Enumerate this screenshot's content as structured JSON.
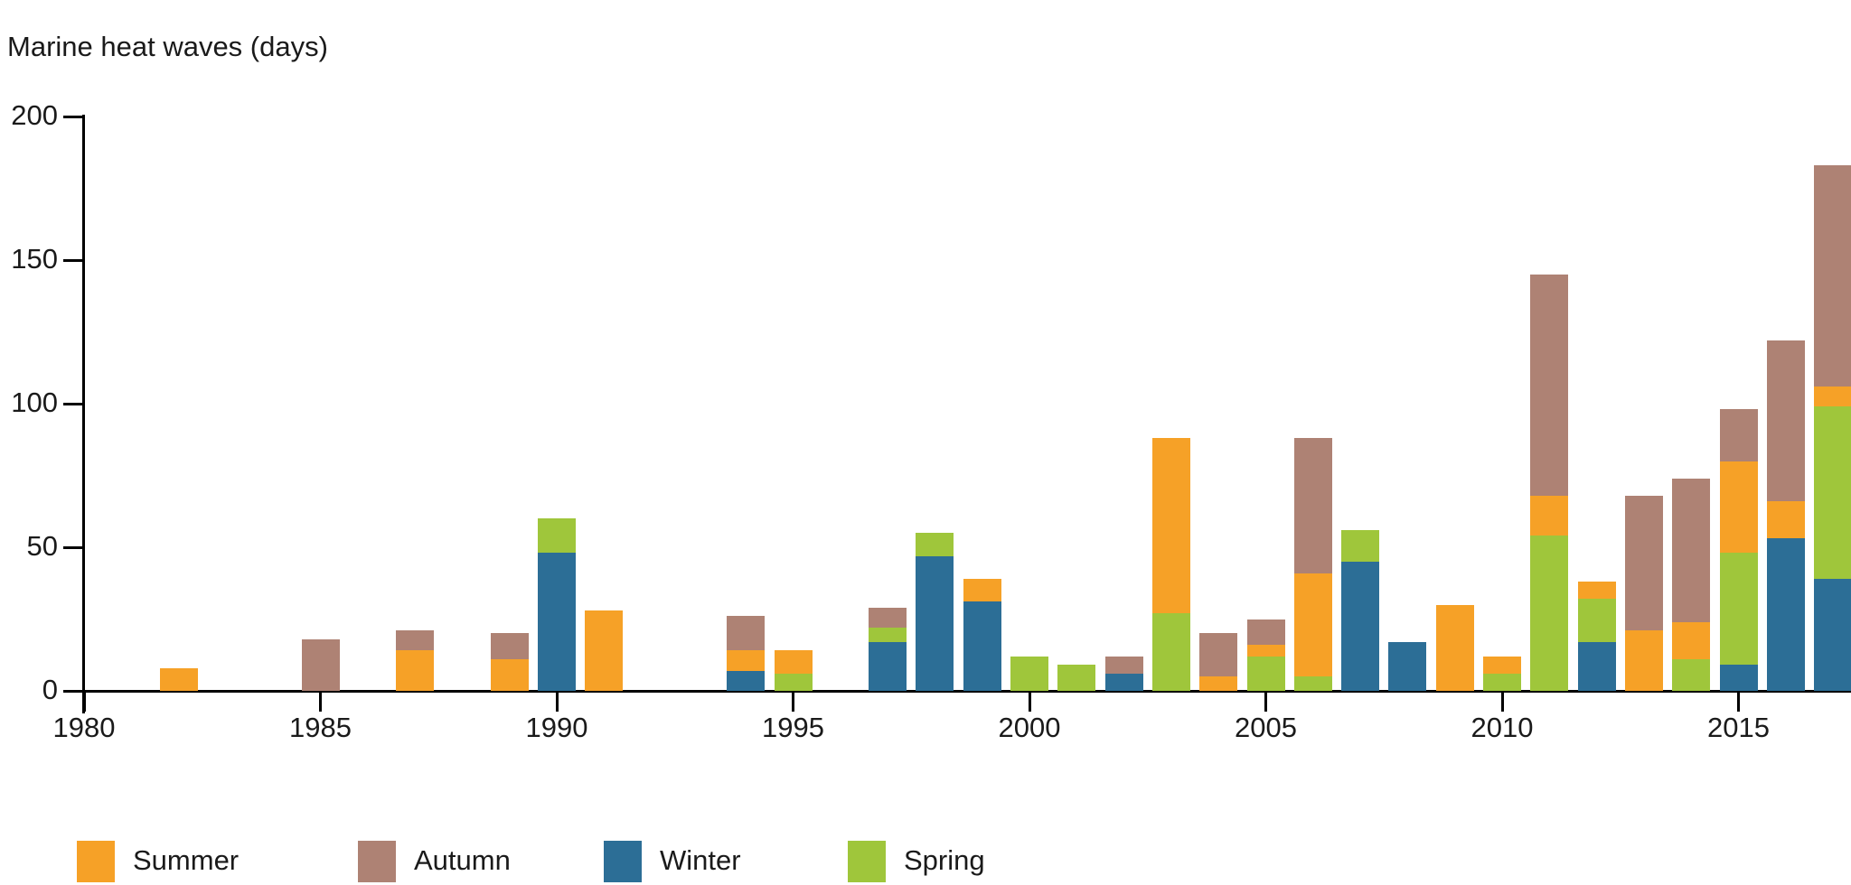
{
  "title": "Marine heat waves (days)",
  "colors": {
    "summer": "#F6A127",
    "autumn": "#AE8274",
    "winter": "#2C6E96",
    "spring": "#9FC63B",
    "axis": "#000000",
    "text": "#1a1a1a"
  },
  "legend": {
    "items": [
      {
        "label": "Summer",
        "color": "#F6A127"
      },
      {
        "label": "Autumn",
        "color": "#AE8274"
      },
      {
        "label": "Winter",
        "color": "#2C6E96"
      },
      {
        "label": "Spring",
        "color": "#9FC63B"
      }
    ]
  },
  "chart_data": {
    "type": "bar",
    "stacked": true,
    "title": "Marine heat waves (days)",
    "ylabel": "Marine heat waves (days)",
    "xlabel": "",
    "ylim": [
      0,
      200
    ],
    "yticks": [
      0,
      50,
      100,
      150,
      200
    ],
    "xticks": [
      1980,
      1985,
      1990,
      1995,
      2000,
      2005,
      2010,
      2015
    ],
    "grid": false,
    "legend_position": "bottom",
    "legend_order": [
      "Summer",
      "Autumn",
      "Winter",
      "Spring"
    ],
    "stack_order_bottom_to_top": [
      "Winter",
      "Spring",
      "Summer",
      "Autumn"
    ],
    "categories": [
      1980,
      1981,
      1982,
      1983,
      1984,
      1985,
      1986,
      1987,
      1988,
      1989,
      1990,
      1991,
      1992,
      1993,
      1994,
      1995,
      1996,
      1997,
      1998,
      1999,
      2000,
      2001,
      2002,
      2003,
      2004,
      2005,
      2006,
      2007,
      2008,
      2009,
      2010,
      2011,
      2012,
      2013,
      2014,
      2015,
      2016,
      2017
    ],
    "series": [
      {
        "name": "Winter",
        "color": "#2C6E96",
        "values": [
          0,
          0,
          0,
          0,
          0,
          0,
          0,
          0,
          0,
          0,
          48,
          0,
          0,
          0,
          7,
          0,
          0,
          17,
          47,
          31,
          0,
          0,
          6,
          0,
          0,
          0,
          0,
          45,
          17,
          0,
          0,
          0,
          17,
          0,
          0,
          9,
          53,
          39
        ]
      },
      {
        "name": "Spring",
        "color": "#9FC63B",
        "values": [
          0,
          0,
          0,
          0,
          0,
          0,
          0,
          0,
          0,
          0,
          12,
          0,
          0,
          0,
          0,
          6,
          0,
          5,
          8,
          0,
          12,
          9,
          0,
          27,
          0,
          12,
          5,
          11,
          0,
          0,
          6,
          54,
          15,
          0,
          11,
          39,
          0,
          60
        ]
      },
      {
        "name": "Summer",
        "color": "#F6A127",
        "values": [
          0,
          0,
          8,
          0,
          0,
          0,
          0,
          14,
          0,
          11,
          0,
          28,
          0,
          0,
          7,
          8,
          0,
          0,
          0,
          8,
          0,
          0,
          0,
          61,
          5,
          4,
          36,
          0,
          0,
          30,
          6,
          14,
          6,
          21,
          13,
          32,
          13,
          7
        ]
      },
      {
        "name": "Autumn",
        "color": "#AE8274",
        "values": [
          0,
          0,
          0,
          0,
          0,
          18,
          0,
          7,
          0,
          9,
          0,
          0,
          0,
          0,
          12,
          0,
          0,
          7,
          0,
          0,
          0,
          0,
          6,
          0,
          15,
          9,
          47,
          0,
          0,
          0,
          0,
          77,
          0,
          47,
          50,
          18,
          56,
          77
        ]
      }
    ]
  }
}
